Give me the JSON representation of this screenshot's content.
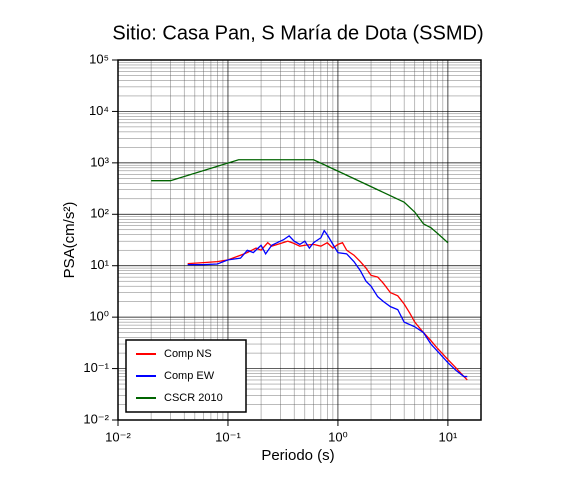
{
  "chart_data": {
    "type": "line",
    "title": "Sitio: Casa Pan, S María de Dota (SSMD)",
    "xlabel": "Periodo (s)",
    "ylabel": "PSA(cm/s²)",
    "xscale": "log",
    "yscale": "log",
    "grid": true,
    "minor_grid": true,
    "legend": "lower left",
    "xlim": [
      0.01,
      20
    ],
    "ylim": [
      0.01,
      100000
    ],
    "xticks": [
      {
        "value": 0.01,
        "label": "10⁻²"
      },
      {
        "value": 0.1,
        "label": "10⁻¹"
      },
      {
        "value": 1,
        "label": "10⁰"
      },
      {
        "value": 10,
        "label": "10¹"
      }
    ],
    "yticks": [
      {
        "value": 0.01,
        "label": "10⁻²"
      },
      {
        "value": 0.1,
        "label": "10⁻¹"
      },
      {
        "value": 1,
        "label": "10⁰"
      },
      {
        "value": 10,
        "label": "10¹"
      },
      {
        "value": 100,
        "label": "10²"
      },
      {
        "value": 1000,
        "label": "10³"
      },
      {
        "value": 10000,
        "label": "10⁴"
      },
      {
        "value": 100000,
        "label": "10⁵"
      }
    ],
    "series": [
      {
        "name": "Comp NS",
        "color": "#ff0000",
        "x": [
          0.043,
          0.06,
          0.08,
          0.1,
          0.13,
          0.15,
          0.18,
          0.2,
          0.23,
          0.25,
          0.3,
          0.35,
          0.4,
          0.45,
          0.5,
          0.6,
          0.7,
          0.8,
          0.9,
          1.0,
          1.1,
          1.2,
          1.4,
          1.6,
          1.8,
          2.0,
          2.3,
          2.6,
          3,
          3.5,
          4,
          4.5,
          5,
          6,
          7,
          8,
          10,
          12,
          14,
          15
        ],
        "values": [
          11,
          11.5,
          12,
          13,
          16,
          18,
          22,
          20,
          28,
          24,
          27,
          30,
          27,
          24,
          25,
          26,
          24,
          28,
          22,
          26,
          28,
          20,
          16,
          12,
          9,
          6.5,
          6,
          4.5,
          3,
          2.6,
          1.8,
          1.2,
          0.8,
          0.5,
          0.35,
          0.25,
          0.15,
          0.1,
          0.07,
          0.06
        ]
      },
      {
        "name": "Comp EW",
        "color": "#0000ff",
        "x": [
          0.043,
          0.06,
          0.08,
          0.1,
          0.13,
          0.15,
          0.17,
          0.2,
          0.22,
          0.25,
          0.28,
          0.32,
          0.36,
          0.4,
          0.45,
          0.5,
          0.55,
          0.6,
          0.7,
          0.75,
          0.8,
          0.9,
          1.0,
          1.2,
          1.4,
          1.6,
          1.8,
          2.0,
          2.3,
          2.6,
          3,
          3.5,
          4,
          5,
          6,
          7,
          8,
          10,
          12,
          14,
          15
        ],
        "values": [
          10.5,
          10.5,
          10.8,
          13,
          14,
          20,
          18,
          25,
          17,
          25,
          28,
          32,
          38,
          30,
          26,
          30,
          22,
          28,
          35,
          48,
          40,
          26,
          18,
          17,
          12,
          8,
          5,
          4,
          2.5,
          2,
          1.6,
          1.4,
          0.8,
          0.65,
          0.5,
          0.3,
          0.22,
          0.13,
          0.09,
          0.07,
          0.07
        ]
      },
      {
        "name": "CSCR 2010",
        "color": "#006400",
        "x": [
          0.02,
          0.03,
          0.125,
          0.6,
          1,
          2,
          4,
          5,
          6,
          7,
          8,
          10
        ],
        "values": [
          450,
          450,
          1150,
          1150,
          690,
          345,
          172,
          110,
          65,
          55,
          43,
          28
        ]
      }
    ]
  }
}
